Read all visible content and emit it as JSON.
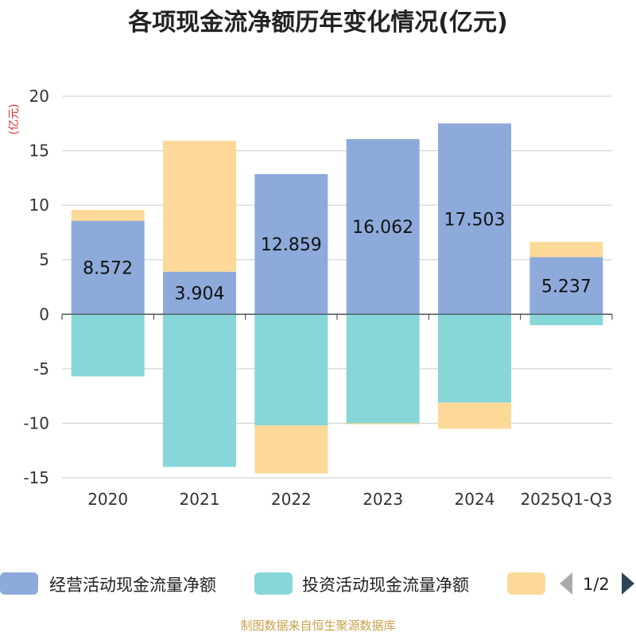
{
  "chart_data": {
    "type": "bar",
    "stacked": true,
    "title": "各项现金流净额历年变化情况(亿元)",
    "ylabel": "(亿元)",
    "ylim": [
      -15,
      20
    ],
    "yticks": [
      20,
      15,
      10,
      5,
      0,
      -5,
      -10,
      -15
    ],
    "categories": [
      "2020",
      "2021",
      "2022",
      "2023",
      "2024",
      "2025Q1-Q3"
    ],
    "series": [
      {
        "name": "经营活动现金流量净额",
        "color": "#8eaadb",
        "values": [
          8.572,
          3.904,
          12.859,
          16.062,
          17.503,
          5.237
        ]
      },
      {
        "name": "投资活动现金流量净额",
        "color": "#87d6d8",
        "values": [
          -5.7,
          -14.0,
          -10.2,
          -10.0,
          -8.1,
          -1.0
        ]
      },
      {
        "name": "",
        "color": "#fdd999",
        "values": [
          1.0,
          12.0,
          -4.4,
          -0.1,
          -2.4,
          1.4
        ]
      }
    ],
    "data_labels": [
      "8.572",
      "3.904",
      "12.859",
      "16.062",
      "17.503",
      "5.237"
    ]
  },
  "legend": {
    "page_indicator": "1/2",
    "prev_icon": "arrow-left-icon",
    "next_icon": "arrow-right-icon"
  },
  "footer": "制图数据来自恒生聚源数据库"
}
